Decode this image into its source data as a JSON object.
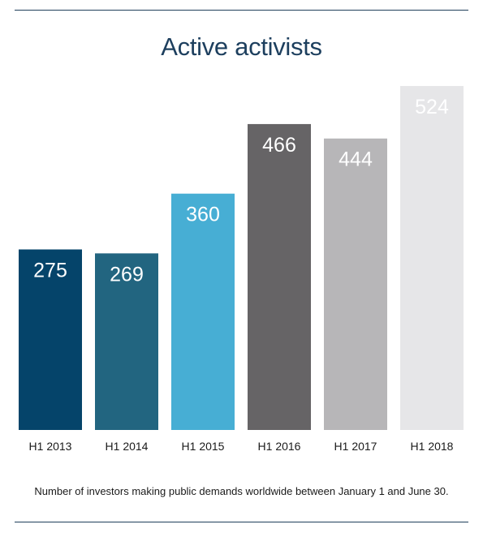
{
  "chart_data": {
    "type": "bar",
    "title": "Active activists",
    "categories": [
      "H1 2013",
      "H1 2014",
      "H1 2015",
      "H1 2016",
      "H1 2017",
      "H1 2018"
    ],
    "values": [
      275,
      269,
      360,
      466,
      444,
      524
    ],
    "colors": [
      "#05446a",
      "#226580",
      "#47aed4",
      "#666466",
      "#b7b6b8",
      "#e6e6e8"
    ],
    "label_colors": [
      "#ffffff",
      "#ffffff",
      "#ffffff",
      "#ffffff",
      "#ffffff",
      "#ffffff"
    ],
    "ylim": [
      0,
      524
    ],
    "grid": false,
    "xlabel": "",
    "ylabel": "",
    "caption": "Number of investors making public demands worldwide between January 1 and June 30."
  }
}
